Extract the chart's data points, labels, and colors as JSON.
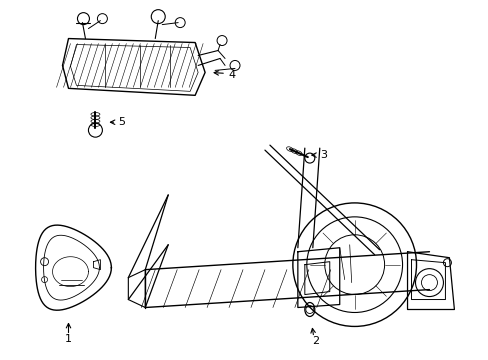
{
  "background_color": "#ffffff",
  "line_color": "#000000",
  "figsize": [
    4.89,
    3.6
  ],
  "dpi": 100,
  "label_fontsize": 8
}
